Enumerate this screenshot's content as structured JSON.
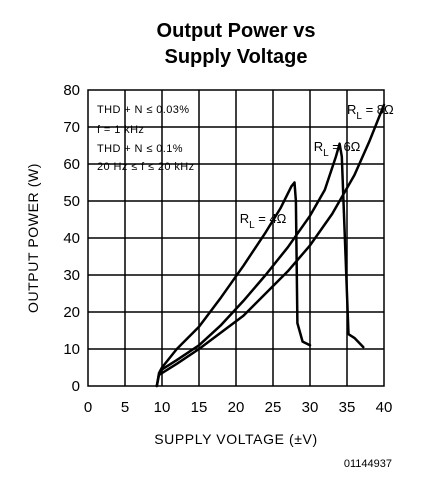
{
  "chart_data": {
    "type": "line",
    "title_line1": "Output Power vs",
    "title_line2": "Supply Voltage",
    "xlabel": "SUPPLY VOLTAGE (±V)",
    "ylabel": "OUTPUT POWER (W)",
    "xlim": [
      0,
      40
    ],
    "ylim": [
      0,
      80
    ],
    "xticks": [
      0,
      5,
      10,
      15,
      20,
      25,
      30,
      35,
      40
    ],
    "yticks": [
      0,
      10,
      20,
      30,
      40,
      50,
      60,
      70,
      80
    ],
    "grid": true,
    "conditions": [
      "THD + N ≤ 0.03%",
      "f = 1 kHz",
      "THD + N ≤ 0.1%",
      "20 Hz ≤ f ≤ 20 kHz"
    ],
    "series": [
      {
        "name": "RL = 4Ω",
        "label_main": "R",
        "label_sub": "L",
        "label_rest": " = 4Ω",
        "label_at": [
          20.5,
          44
        ],
        "x": [
          9.3,
          9.6,
          10,
          12,
          15,
          18,
          21,
          24,
          26,
          27.5,
          27.9,
          28.1,
          28.3,
          29,
          30
        ],
        "y": [
          0,
          3.5,
          5,
          10,
          16,
          24,
          32.5,
          41.5,
          48,
          54,
          55,
          50,
          17,
          12,
          11
        ]
      },
      {
        "name": "RL = 6Ω",
        "label_main": "R",
        "label_sub": "L",
        "label_rest": " = 6Ω",
        "label_at": [
          30.5,
          63.5
        ],
        "x": [
          9.3,
          9.6,
          10,
          12,
          15,
          18,
          21,
          24,
          27,
          30,
          32,
          33.5,
          34,
          34.3,
          35.2,
          36,
          37.2
        ],
        "y": [
          0,
          3,
          4.5,
          7,
          11,
          16.5,
          23,
          30,
          37.5,
          46,
          53,
          62,
          65.5,
          62,
          14,
          13,
          10.5
        ]
      },
      {
        "name": "RL = 8Ω",
        "label_main": "R",
        "label_sub": "L",
        "label_rest": " = 8Ω",
        "label_at": [
          35,
          73.5
        ],
        "x": [
          9.6,
          10,
          12,
          15,
          18,
          21,
          24,
          27,
          30,
          33,
          36,
          38,
          40
        ],
        "y": [
          3,
          3.5,
          6,
          10,
          14.5,
          19,
          25,
          31,
          38,
          46.5,
          57,
          66,
          76
        ]
      }
    ]
  },
  "figure_code": "01144937"
}
